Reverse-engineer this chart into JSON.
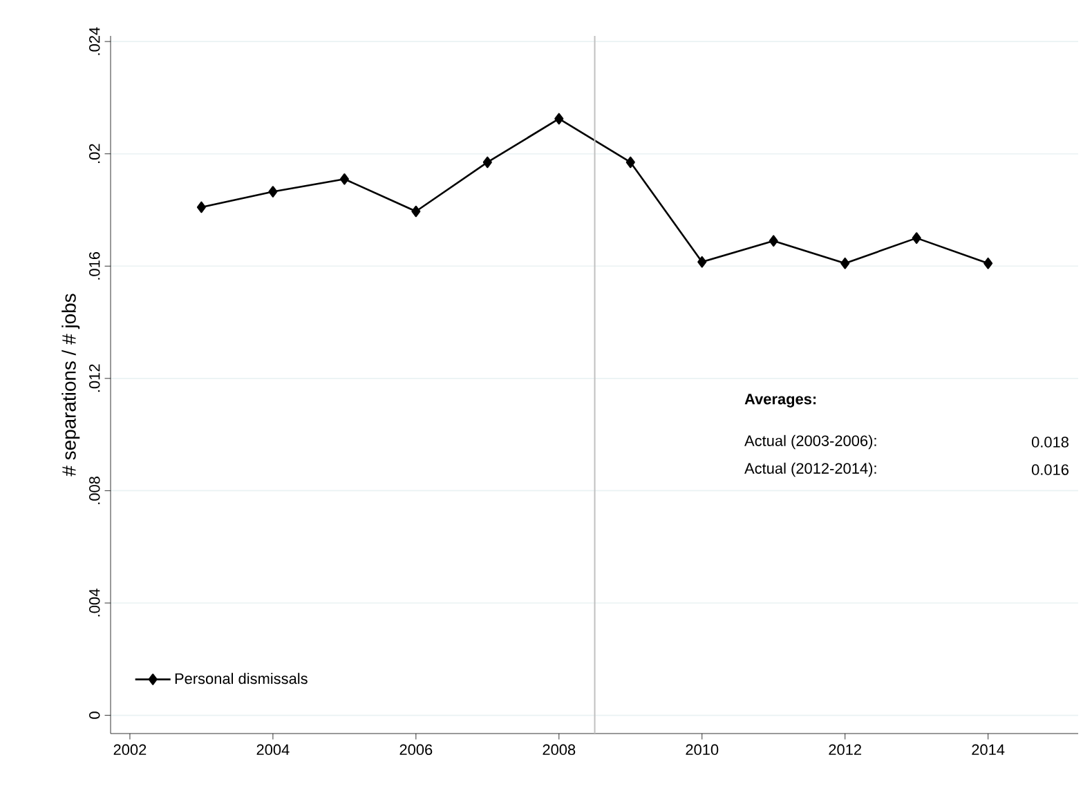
{
  "chart_data": {
    "type": "line",
    "ylabel": "# separations / # jobs",
    "x": [
      2003,
      2004,
      2005,
      2006,
      2007,
      2008,
      2009,
      2010,
      2011,
      2012,
      2013,
      2014
    ],
    "series": [
      {
        "name": "Personal dismissals",
        "color": "#000000",
        "values": [
          0.0181,
          0.01865,
          0.0191,
          0.01795,
          0.0197,
          0.02125,
          0.0197,
          0.01615,
          0.0169,
          0.0161,
          0.017,
          0.0161
        ]
      }
    ],
    "xlim": [
      2001.73,
      2015.26
    ],
    "ylim": [
      -0.00065,
      0.0242
    ],
    "xticks": [
      2002,
      2004,
      2006,
      2008,
      2010,
      2012,
      2014
    ],
    "yticks": [
      0,
      {
        "value": 0.004,
        "label": ".004"
      },
      {
        "value": 0.008,
        "label": ".008"
      },
      {
        "value": 0.012,
        "label": ".012"
      },
      {
        "value": 0.016,
        "label": ".016"
      },
      {
        "value": 0.02,
        "label": ".02"
      },
      {
        "value": 0.024,
        "label": ".024"
      }
    ],
    "ref_lines": [
      {
        "axis": "x",
        "value": 2008.5,
        "color": "#c0c0c0"
      }
    ],
    "annotations": [
      "Averages:",
      "Actual (2003-2006):",
      "0.018",
      "Actual (2012-2014):",
      "0.016"
    ],
    "grid": "y",
    "legend": "bottom left",
    "marker": "diamond",
    "line_style": "solid"
  }
}
